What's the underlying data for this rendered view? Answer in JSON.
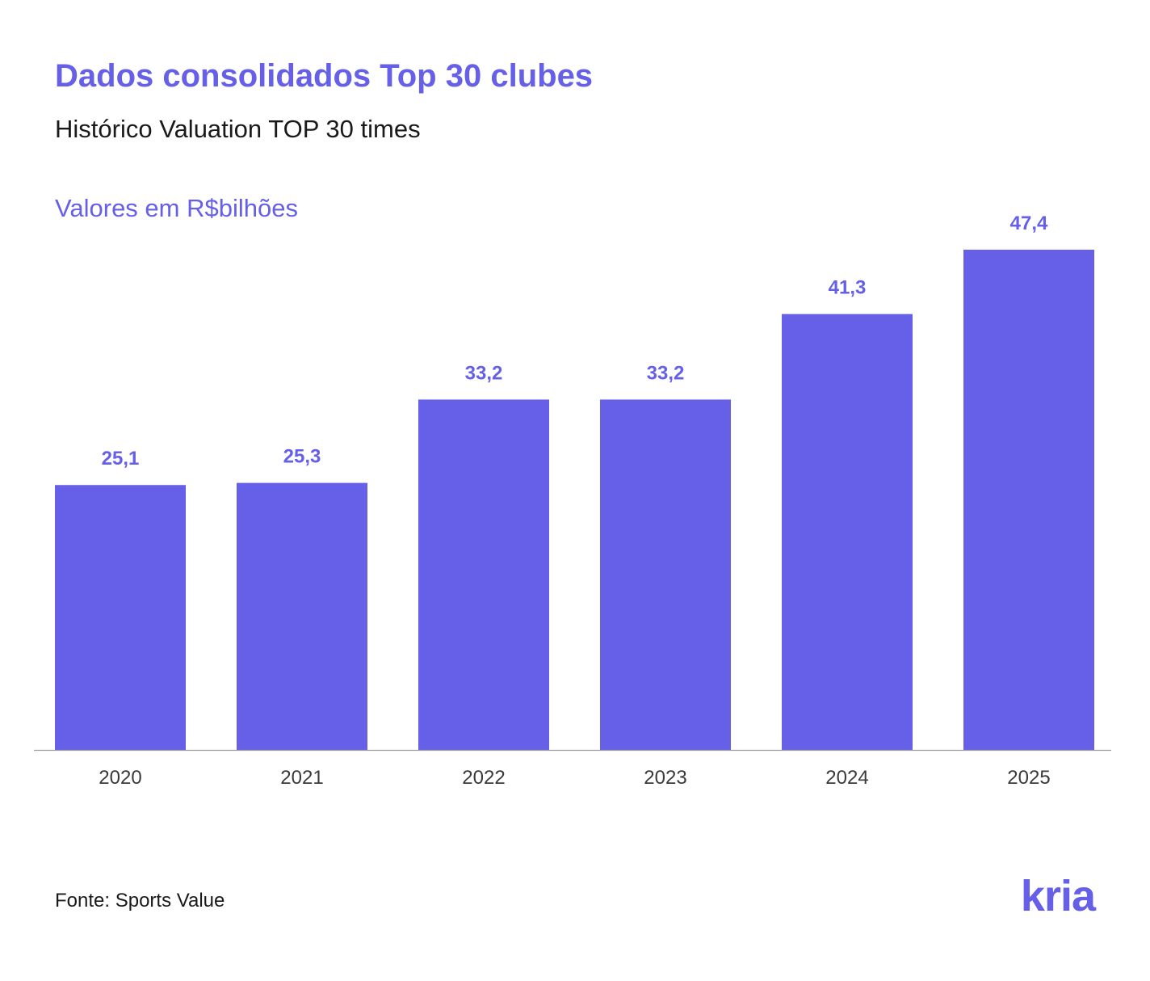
{
  "header": {
    "title": "Dados consolidados Top 30 clubes",
    "subtitle": "Histórico Valuation TOP 30 times",
    "units": "Valores em R$bilhões"
  },
  "chart_data": {
    "type": "bar",
    "title": "Dados consolidados Top 30 clubes",
    "subtitle": "Histórico Valuation TOP 30 times",
    "xlabel": "",
    "ylabel": "Valores em R$bilhões",
    "categories": [
      "2020",
      "2021",
      "2022",
      "2023",
      "2024",
      "2025"
    ],
    "values": [
      25.1,
      25.3,
      33.2,
      33.2,
      41.3,
      47.4
    ],
    "value_labels": [
      "25,1",
      "25,3",
      "33,2",
      "33,2",
      "41,3",
      "47,4"
    ],
    "ylim": [
      0,
      47.4
    ],
    "grid": false,
    "legend": "none",
    "bar_color": "#665FE8",
    "label_color": "#665FE8",
    "axis_color": "#9a9a9a",
    "tick_label_color": "#3a3a3a"
  },
  "footer": {
    "source": "Fonte: Sports Value",
    "logo_text": "kria"
  }
}
